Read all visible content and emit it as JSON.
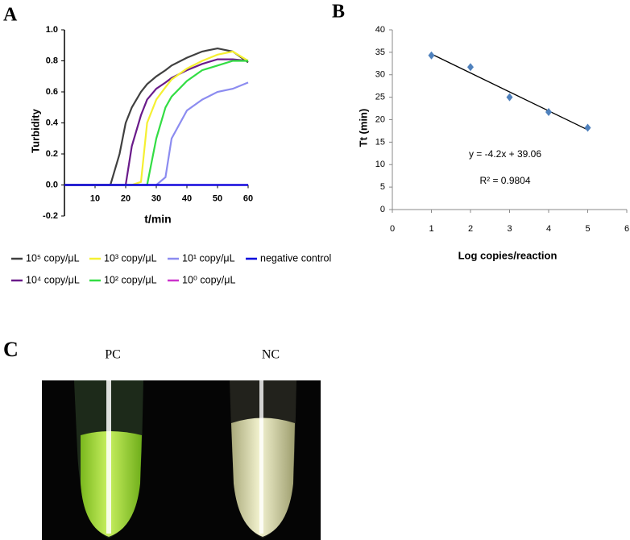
{
  "chart_data": [
    {
      "type": "line",
      "panel": "A",
      "x_label": "t/min",
      "y_label": "Turbidity",
      "x": [
        0,
        10,
        15,
        18,
        20,
        22,
        25,
        27,
        30,
        33,
        35,
        40,
        45,
        50,
        55,
        60
      ],
      "series": [
        {
          "name": "10⁵ copy/μL",
          "color": "#404040",
          "values": [
            0,
            0,
            0,
            0.2,
            0.4,
            0.5,
            0.6,
            0.65,
            0.7,
            0.74,
            0.77,
            0.82,
            0.86,
            0.88,
            0.86,
            0.79
          ]
        },
        {
          "name": "10⁴ copy/μL",
          "color": "#6a1b8a",
          "values": [
            0,
            0,
            0,
            0,
            0,
            0.25,
            0.45,
            0.55,
            0.62,
            0.66,
            0.69,
            0.74,
            0.78,
            0.81,
            0.81,
            0.8
          ]
        },
        {
          "name": "10³ copy/μL",
          "color": "#f5f032",
          "values": [
            0,
            0,
            0,
            0,
            0,
            0,
            0.02,
            0.4,
            0.55,
            0.63,
            0.68,
            0.75,
            0.8,
            0.84,
            0.86,
            0.8
          ]
        },
        {
          "name": "10² copy/μL",
          "color": "#33dd44",
          "values": [
            0,
            0,
            0,
            0,
            0,
            0,
            0,
            0,
            0.3,
            0.5,
            0.57,
            0.67,
            0.74,
            0.77,
            0.8,
            0.8
          ]
        },
        {
          "name": "10¹ copy/μL",
          "color": "#8c8cf0",
          "values": [
            0,
            0,
            0,
            0,
            0,
            0,
            0,
            0,
            0,
            0.05,
            0.3,
            0.48,
            0.55,
            0.6,
            0.62,
            0.66
          ]
        },
        {
          "name": "10⁰ copy/μL",
          "color": "#cc33cc",
          "values": [
            0,
            0,
            0,
            0,
            0,
            0,
            0,
            0,
            0,
            0,
            0,
            0,
            0,
            0,
            0,
            0
          ]
        },
        {
          "name": "negative control",
          "color": "#0000dd",
          "values": [
            0,
            0,
            0,
            0,
            0,
            0,
            0,
            0,
            0,
            0,
            0,
            0,
            0,
            0,
            0,
            0
          ]
        }
      ],
      "xlim": [
        0,
        60
      ],
      "xticks": [
        10,
        20,
        30,
        40,
        50,
        60
      ],
      "ylim": [
        -0.2,
        1.0
      ],
      "yticks": [
        -0.2,
        {
          "value": 0,
          "label": "0.0"
        },
        0.2,
        0.4,
        0.6,
        0.8,
        {
          "value": 1,
          "label": "1.0"
        }
      ],
      "legend": "bottom"
    },
    {
      "type": "scatter",
      "panel": "B",
      "x_label": "Log copies/reaction",
      "y_label": "Tt (min)",
      "x": [
        1,
        2,
        3,
        4,
        5
      ],
      "values": [
        34.3,
        31.7,
        25,
        21.7,
        18.2
      ],
      "color": "#4f81bd",
      "annotations": [
        "y = -4.2x + 39.06",
        "R² = 0.9804"
      ],
      "xlim": [
        0,
        6
      ],
      "xticks": [
        0,
        1,
        2,
        3,
        4,
        5,
        6
      ],
      "ylim": [
        0,
        40
      ],
      "yticks": [
        0,
        5,
        10,
        15,
        20,
        25,
        30,
        35,
        40
      ],
      "trendline": true
    }
  ],
  "photo": {
    "panel": "C",
    "labels": [
      "PC",
      "NC"
    ]
  }
}
